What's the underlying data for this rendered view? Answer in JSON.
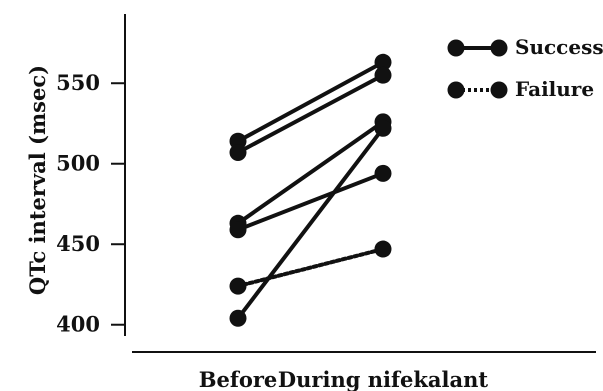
{
  "chart_data": {
    "type": "line",
    "title": "",
    "xlabel": "",
    "ylabel": "QTc interval (msec)",
    "categories": [
      "Before",
      "During nifekalant"
    ],
    "ylim": [
      393,
      593
    ],
    "yticks": [
      400,
      450,
      500,
      550
    ],
    "grid": false,
    "legend_position": "top-right",
    "legend": [
      {
        "label": "Success",
        "style": "solid"
      },
      {
        "label": "Failure",
        "style": "dotted"
      }
    ],
    "series": [
      {
        "group": "Success",
        "values": [
          514,
          563
        ]
      },
      {
        "group": "Success",
        "values": [
          507,
          555
        ]
      },
      {
        "group": "Success",
        "values": [
          463,
          526
        ]
      },
      {
        "group": "Success",
        "values": [
          459,
          494
        ]
      },
      {
        "group": "Success",
        "values": [
          404,
          522
        ]
      },
      {
        "group": "Failure",
        "values": [
          424,
          447
        ]
      }
    ],
    "colors": {
      "line": "#111111",
      "marker": "#111111",
      "background": "#ffffff"
    }
  }
}
